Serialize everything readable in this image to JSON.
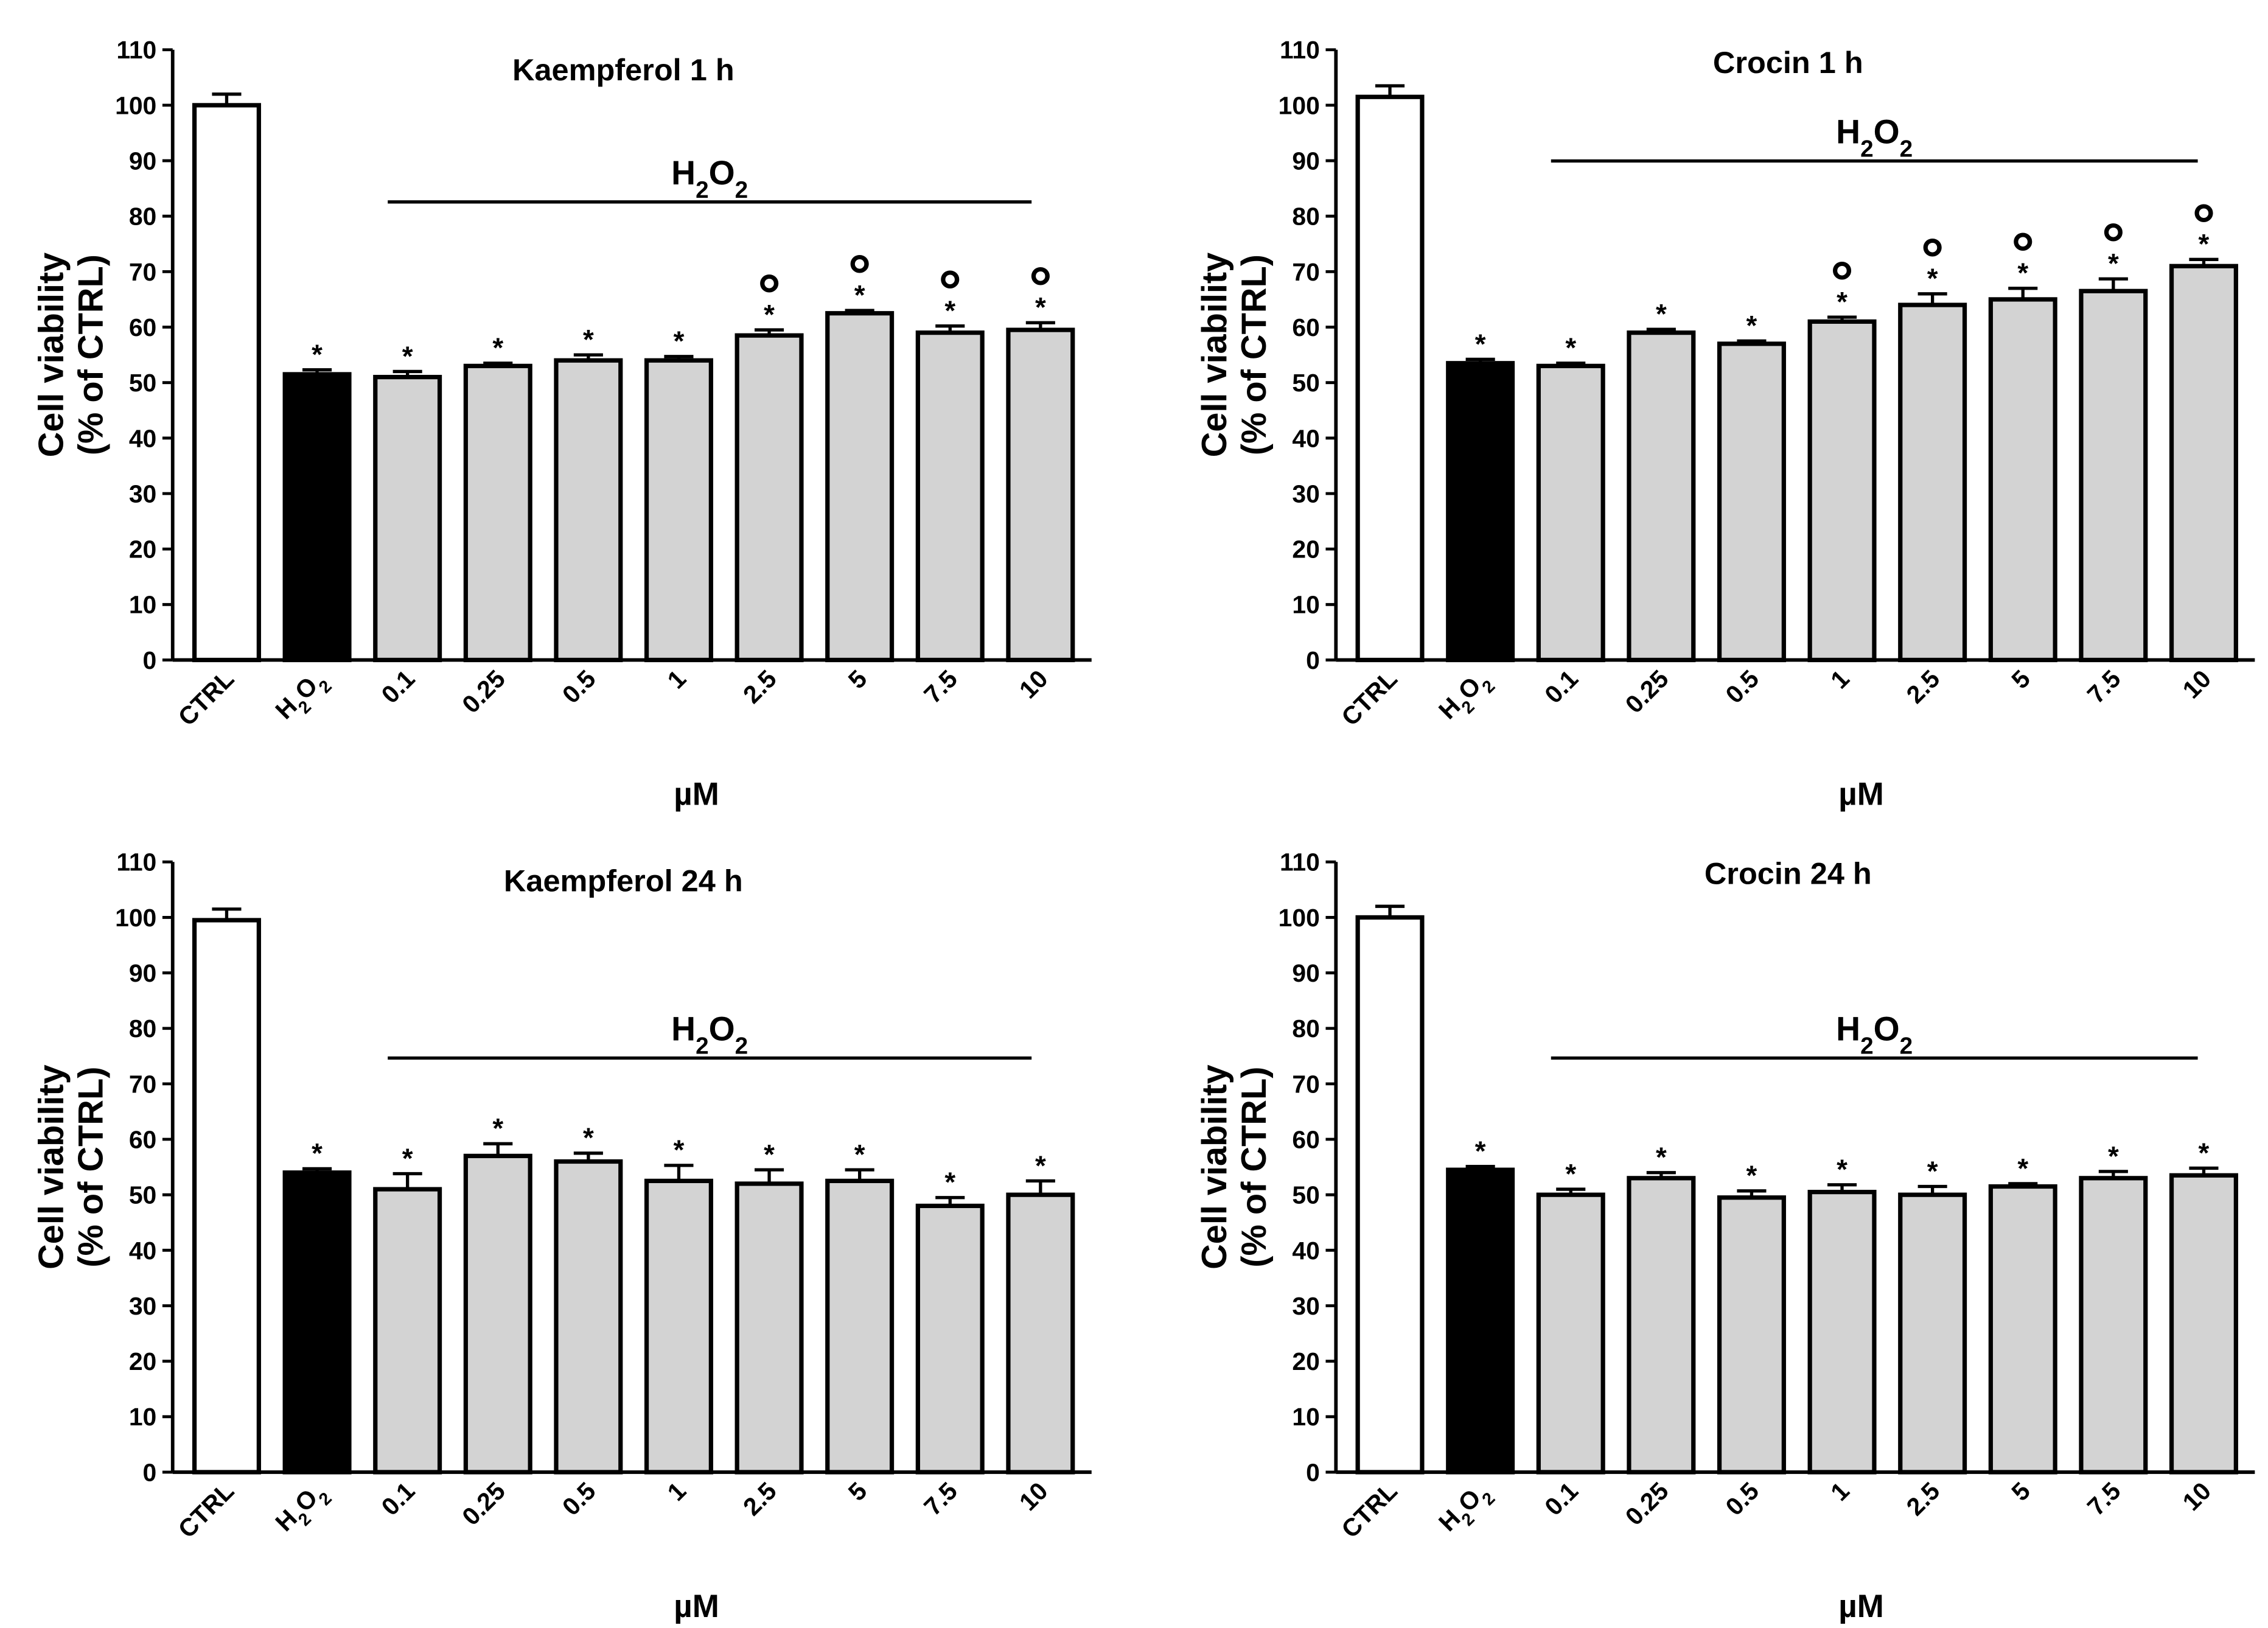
{
  "chart_data": [
    {
      "type": "bar",
      "title": "Kaempferol 1 h",
      "xlabel": "µM",
      "ylabel_line1": "Cell viability",
      "ylabel_line2": "(% of CTRL)",
      "ylim": [
        0,
        110
      ],
      "yticks": [
        "0",
        "10",
        "20",
        "30",
        "40",
        "50",
        "60",
        "70",
        "80",
        "90",
        "100",
        "110"
      ],
      "bracket_label": "H2O2",
      "categories": [
        "CTRL",
        "H2O2",
        "0.1",
        "0.25",
        "0.5",
        "1",
        "2.5",
        "5",
        "7.5",
        "10"
      ],
      "values": [
        100,
        51.5,
        51,
        53,
        54,
        54,
        58.5,
        62.5,
        59,
        59.5
      ],
      "errors": [
        2,
        0.8,
        1,
        0.5,
        1,
        0.7,
        1,
        0.5,
        1.2,
        1.3
      ],
      "fills": [
        "#ffffff",
        "#000000",
        "#d3d3d3",
        "#d3d3d3",
        "#d3d3d3",
        "#d3d3d3",
        "#d3d3d3",
        "#d3d3d3",
        "#d3d3d3",
        "#d3d3d3"
      ],
      "stars": [
        "",
        "*",
        "*",
        "*",
        "*",
        "*",
        "*",
        "*",
        "*",
        "*"
      ],
      "circles": [
        "",
        "",
        "",
        "",
        "",
        "",
        "°",
        "°",
        "°",
        "°"
      ]
    },
    {
      "type": "bar",
      "title": "Crocin 1 h",
      "xlabel": "µM",
      "ylabel_line1": "Cell viability",
      "ylabel_line2": "(% of CTRL)",
      "ylim": [
        0,
        110
      ],
      "yticks": [
        "0",
        "10",
        "20",
        "30",
        "40",
        "50",
        "60",
        "70",
        "80",
        "90",
        "100",
        "110"
      ],
      "bracket_label": "H2O2",
      "categories": [
        "CTRL",
        "H2O2",
        "0.1",
        "0.25",
        "0.5",
        "1",
        "2.5",
        "5",
        "7.5",
        "10"
      ],
      "values": [
        101.5,
        53.5,
        53,
        59,
        57,
        61,
        64,
        65,
        66.5,
        71
      ],
      "errors": [
        2,
        0.7,
        0.5,
        0.6,
        0.5,
        0.8,
        2,
        2,
        2.2,
        1.2
      ],
      "fills": [
        "#ffffff",
        "#000000",
        "#d3d3d3",
        "#d3d3d3",
        "#d3d3d3",
        "#d3d3d3",
        "#d3d3d3",
        "#d3d3d3",
        "#d3d3d3",
        "#d3d3d3"
      ],
      "stars": [
        "",
        "*",
        "*",
        "*",
        "*",
        "*",
        "*",
        "*",
        "*",
        "*"
      ],
      "circles": [
        "",
        "",
        "",
        "",
        "",
        "°",
        "°",
        "°",
        "°",
        "°"
      ]
    },
    {
      "type": "bar",
      "title": "Kaempferol 24 h",
      "xlabel": "µM",
      "ylabel_line1": "Cell viability",
      "ylabel_line2": "(% of CTRL)",
      "ylim": [
        0,
        110
      ],
      "yticks": [
        "0",
        "10",
        "20",
        "30",
        "40",
        "50",
        "60",
        "70",
        "80",
        "90",
        "100",
        "110"
      ],
      "bracket_label": "H2O2",
      "categories": [
        "CTRL",
        "H2O2",
        "0.1",
        "0.25",
        "0.5",
        "1",
        "2.5",
        "5",
        "7.5",
        "10"
      ],
      "values": [
        99.5,
        54,
        51,
        57,
        56,
        52.5,
        52,
        52.5,
        48,
        50
      ],
      "errors": [
        2,
        0.7,
        2.8,
        2.2,
        1.5,
        2.8,
        2.5,
        2,
        1.5,
        2.5
      ],
      "fills": [
        "#ffffff",
        "#000000",
        "#d3d3d3",
        "#d3d3d3",
        "#d3d3d3",
        "#d3d3d3",
        "#d3d3d3",
        "#d3d3d3",
        "#d3d3d3",
        "#d3d3d3"
      ],
      "stars": [
        "",
        "*",
        "*",
        "*",
        "*",
        "*",
        "*",
        "*",
        "*",
        "*"
      ],
      "circles": [
        "",
        "",
        "",
        "",
        "",
        "",
        "",
        "",
        "",
        ""
      ]
    },
    {
      "type": "bar",
      "title": "Crocin 24 h",
      "xlabel": "µM",
      "ylabel_line1": "Cell viability",
      "ylabel_line2": "(% of CTRL)",
      "ylim": [
        0,
        110
      ],
      "yticks": [
        "0",
        "10",
        "20",
        "30",
        "40",
        "50",
        "60",
        "70",
        "80",
        "90",
        "100",
        "110"
      ],
      "bracket_label": "H2O2",
      "categories": [
        "CTRL",
        "H2O2",
        "0.1",
        "0.25",
        "0.5",
        "1",
        "2.5",
        "5",
        "7.5",
        "10"
      ],
      "values": [
        100,
        54.5,
        50,
        53,
        49.5,
        50.5,
        50,
        51.5,
        53,
        53.5
      ],
      "errors": [
        2,
        0.6,
        1,
        1,
        1.2,
        1.3,
        1.5,
        0.5,
        1.2,
        1.3
      ],
      "fills": [
        "#ffffff",
        "#000000",
        "#d3d3d3",
        "#d3d3d3",
        "#d3d3d3",
        "#d3d3d3",
        "#d3d3d3",
        "#d3d3d3",
        "#d3d3d3",
        "#d3d3d3"
      ],
      "stars": [
        "",
        "*",
        "*",
        "*",
        "*",
        "*",
        "*",
        "*",
        "*",
        "*"
      ],
      "circles": [
        "",
        "",
        "",
        "",
        "",
        "",
        "",
        "",
        "",
        ""
      ]
    }
  ]
}
